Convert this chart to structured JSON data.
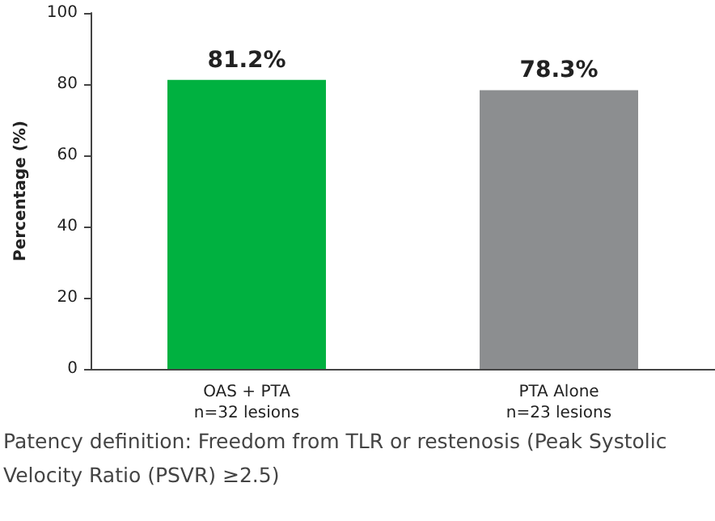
{
  "chart_data": {
    "type": "bar",
    "ylabel": "Percentage (%)",
    "categories": [
      "OAS + PTA\nn=32 lesions",
      "PTA Alone\nn=23 lesions"
    ],
    "values": [
      81.2,
      78.3
    ],
    "colors": [
      "#00b140",
      "#8c8e90"
    ],
    "value_labels": [
      "81.2%",
      "78.3%"
    ],
    "ylim": [
      0,
      100
    ],
    "yticks": [
      0,
      20,
      40,
      60,
      80,
      100
    ],
    "annotations": [
      "Patency definition: Freedom from TLR or restenosis (Peak Systolic Velocity Ratio (PSVR) ≥2.5)"
    ]
  }
}
